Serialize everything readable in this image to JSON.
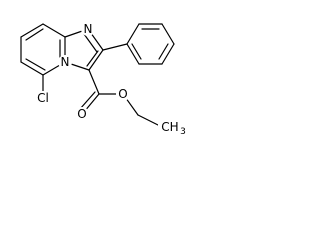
{
  "atoms": [
    {
      "label": "N"
    },
    {
      "label": "N"
    },
    {
      "label": "Cl"
    },
    {
      "label": "O"
    },
    {
      "label": "O"
    },
    {
      "label": "CH",
      "subscript": "3"
    }
  ]
}
